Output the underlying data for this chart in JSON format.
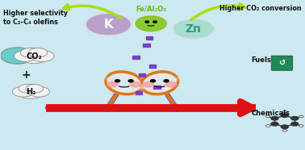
{
  "bg_color": "#cce8f0",
  "text_higher_selectivity": "Higher selectivity\nto C₂–C₄ olefins",
  "text_higher_co2": "Higher CO₂ conversion",
  "text_fe_al2o3": "Fe/Al₂O₃",
  "text_K": "K",
  "text_Zn": "Zn",
  "text_co2": "CO₂",
  "text_h2": "H₂",
  "text_fuels": "Fuels",
  "text_chemicals": "Chemicals",
  "text_plus": "+",
  "K_circle_color": "#b8a0c8",
  "Zn_circle_color": "#a8ddd0",
  "fe_catalyst_color": "#88cc33",
  "racket_frame_color": "#e07818",
  "racket_string_color": "#e8e8e8",
  "racket_handle_color": "#6655aa",
  "diamond_color": "#7733bb",
  "cloud_color": "#f2f2f2",
  "cloud_border": "#999999",
  "arrow_green_color": "#aadd11",
  "arrow_red_color": "#dd1111",
  "cheek_color": "#ff9999",
  "fuels_green": "#228855",
  "mol_color": "#333333"
}
